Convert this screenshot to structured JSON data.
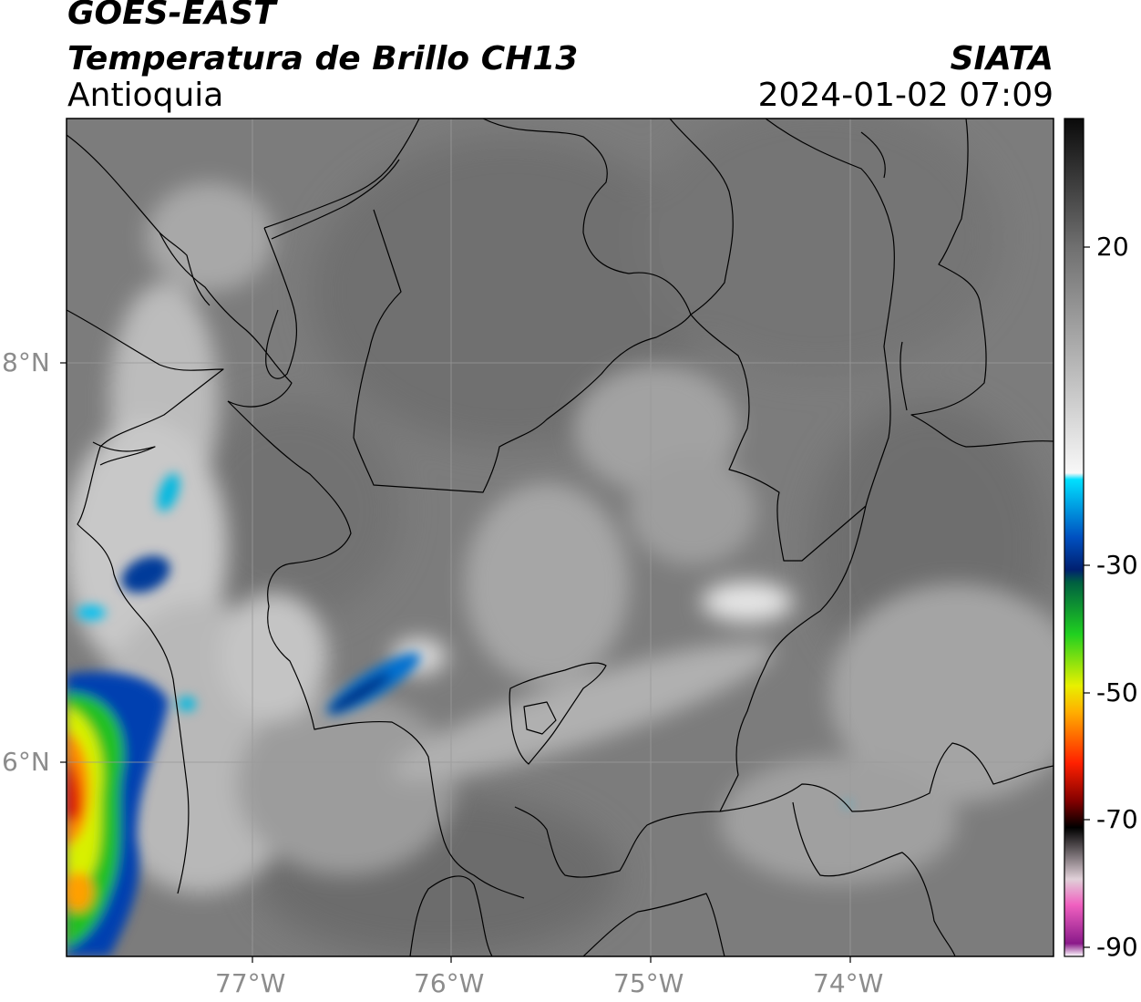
{
  "title": {
    "satellite": "GOES-EAST",
    "product": "Temperatura de Brillo CH13",
    "region": "Antioquia",
    "agency": "SIATA",
    "datetime": "2024-01-02 07:09"
  },
  "map": {
    "lon_ticks": [
      "77°W",
      "76°W",
      "75°W",
      "74°W"
    ],
    "lat_ticks": [
      "8°N",
      "6°N"
    ],
    "background_color": "#7c7c7c",
    "border_color": "#000000",
    "gridline_color": "#9a9a9a"
  },
  "colorbar": {
    "ticks": [
      "20",
      "-30",
      "-50",
      "-70",
      "-90"
    ],
    "range": [
      -90,
      40
    ],
    "stops": [
      {
        "value": 40,
        "color": "#0a0a0a"
      },
      {
        "value": 20,
        "color": "#707070"
      },
      {
        "value": -15,
        "color": "#f8f8f8"
      },
      {
        "value": -16,
        "color": "#00e0ff"
      },
      {
        "value": -25,
        "color": "#0050c0"
      },
      {
        "value": -30,
        "color": "#002070"
      },
      {
        "value": -32,
        "color": "#006040"
      },
      {
        "value": -40,
        "color": "#20d020"
      },
      {
        "value": -48,
        "color": "#e8f000"
      },
      {
        "value": -52,
        "color": "#ffb000"
      },
      {
        "value": -60,
        "color": "#ff2000"
      },
      {
        "value": -66,
        "color": "#800000"
      },
      {
        "value": -70,
        "color": "#000000"
      },
      {
        "value": -78,
        "color": "#e0d0d8"
      },
      {
        "value": -82,
        "color": "#f060c0"
      },
      {
        "value": -88,
        "color": "#8a1a8a"
      },
      {
        "value": -90,
        "color": "#ffffff"
      }
    ]
  }
}
